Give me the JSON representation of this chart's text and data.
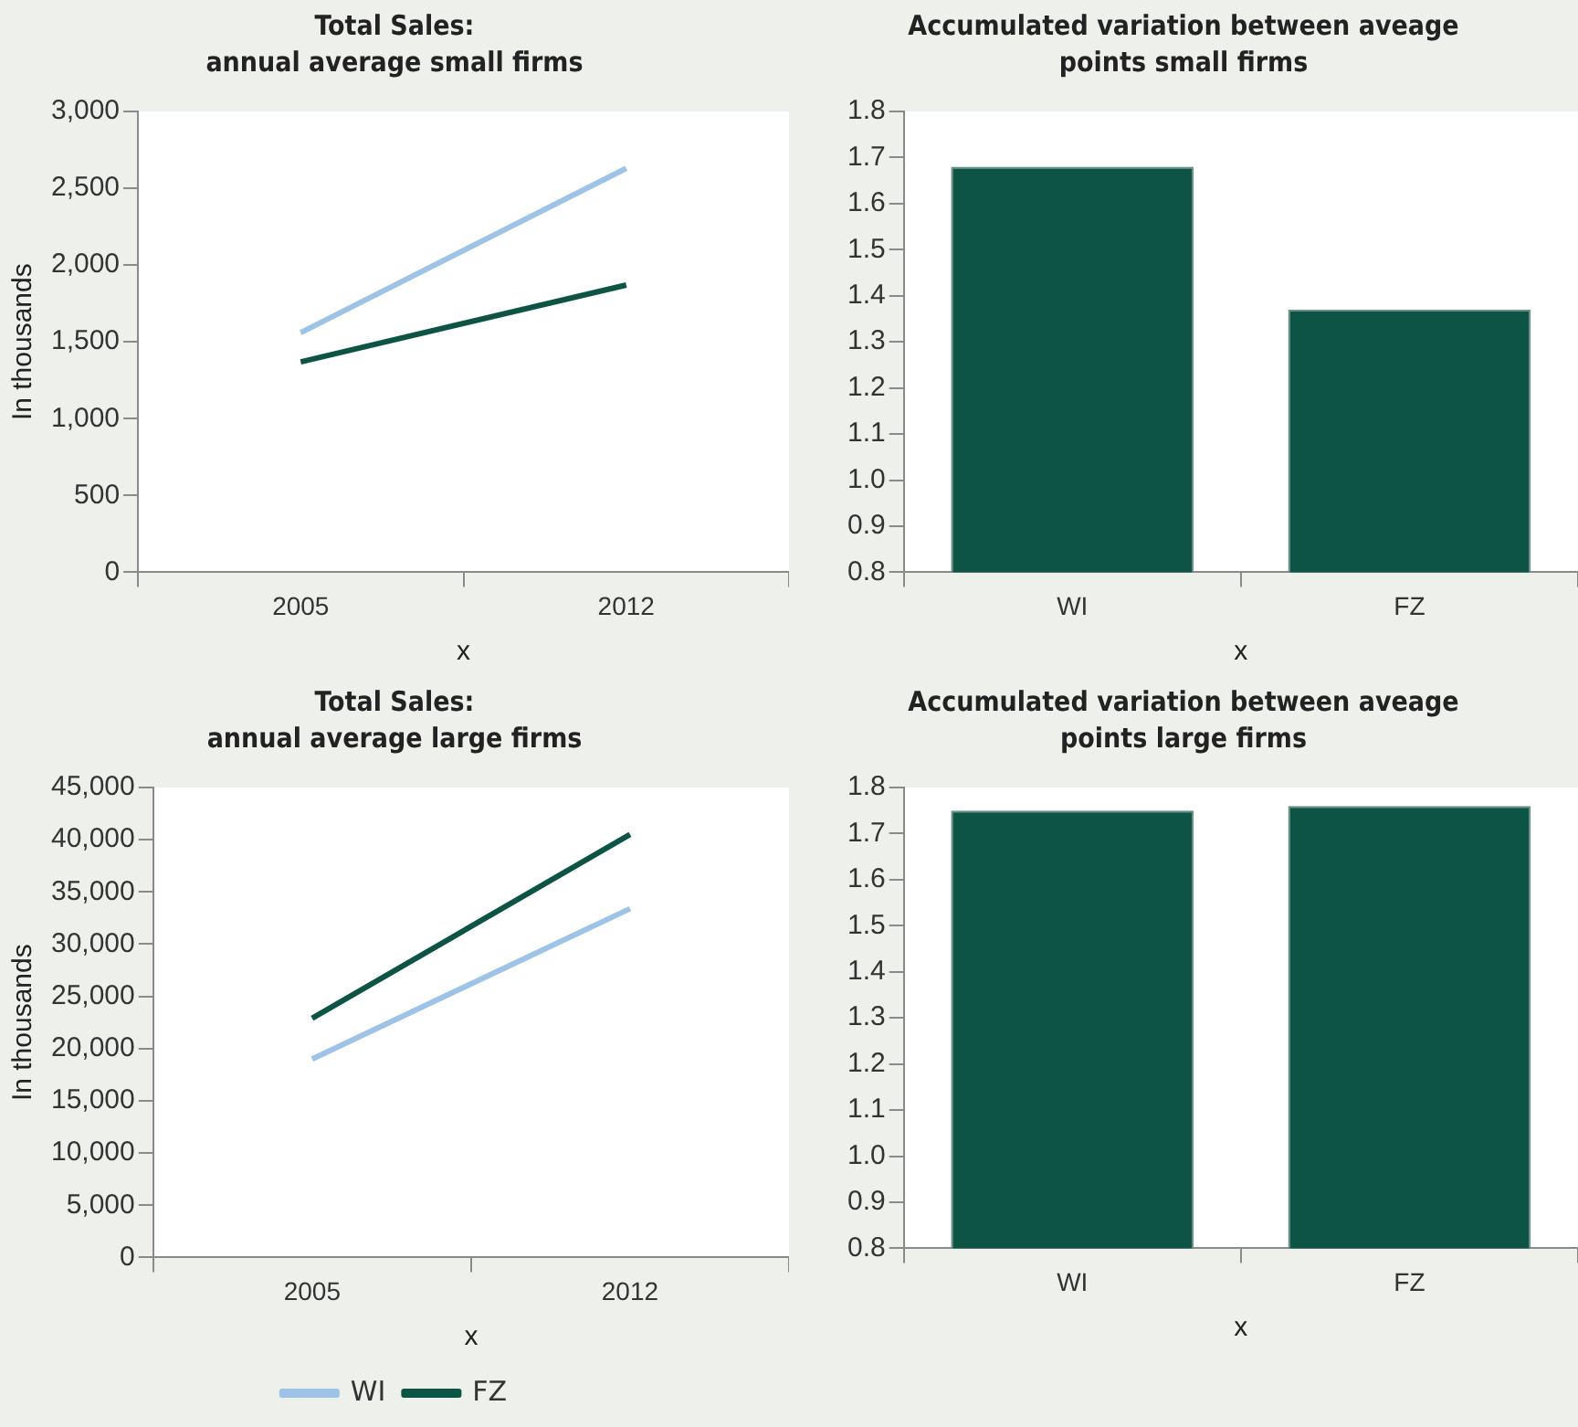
{
  "chart_data": [
    {
      "type": "line",
      "title": "Total Sales:\nannual average small firms",
      "xlabel": "x",
      "ylabel": "In thousands",
      "categories": [
        "2005",
        "2012"
      ],
      "series": [
        {
          "color": "#9dc3e6",
          "values": [
            1560,
            2630
          ]
        },
        {
          "color": "#0e5445",
          "values": [
            1370,
            1870
          ]
        }
      ],
      "ylim": [
        0,
        3000
      ],
      "yticks": [
        0,
        500,
        {
          "value": 1000,
          "label": "1,000"
        },
        {
          "value": 1500,
          "label": "1,500"
        },
        {
          "value": 2000,
          "label": "2,000"
        },
        {
          "value": 2500,
          "label": "2,500"
        },
        {
          "value": 3000,
          "label": "3,000"
        }
      ],
      "grid": false,
      "legend": false,
      "marker": "none"
    },
    {
      "type": "bar",
      "title": "Accumulated variation between aveage\npoints small firms",
      "xlabel": "x",
      "categories": [
        "WI",
        "FZ"
      ],
      "values": [
        1.68,
        1.37
      ],
      "color": "#0e5445",
      "ylim": [
        0.8,
        1.8
      ],
      "yticks": [
        0.8,
        0.9,
        {
          "value": 1.0,
          "label": "1.0"
        },
        1.1,
        1.2,
        1.3,
        1.4,
        1.5,
        1.6,
        1.7,
        1.8
      ],
      "grid": false,
      "legend": false
    },
    {
      "type": "line",
      "title": "Total Sales:\nannual average large firms",
      "xlabel": "x",
      "ylabel": "In thousands",
      "categories": [
        "2005",
        "2012"
      ],
      "series": [
        {
          "name": "WI",
          "color": "#9dc3e6",
          "values": [
            19000,
            33400
          ]
        },
        {
          "name": "FZ",
          "color": "#0e5445",
          "values": [
            22900,
            40500
          ]
        }
      ],
      "ylim": [
        0,
        45000
      ],
      "yticks": [
        0,
        {
          "value": 5000,
          "label": "5,000"
        },
        {
          "value": 10000,
          "label": "10,000"
        },
        {
          "value": 15000,
          "label": "15,000"
        },
        {
          "value": 20000,
          "label": "20,000"
        },
        {
          "value": 25000,
          "label": "25,000"
        },
        {
          "value": 30000,
          "label": "30,000"
        },
        {
          "value": 35000,
          "label": "35,000"
        },
        {
          "value": 40000,
          "label": "40,000"
        },
        {
          "value": 45000,
          "label": "45,000"
        }
      ],
      "grid": false,
      "legend": "bottom",
      "marker": "none"
    },
    {
      "type": "bar",
      "title": "Accumulated variation between aveage\npoints large firms",
      "xlabel": "x",
      "categories": [
        "WI",
        "FZ"
      ],
      "values": [
        1.75,
        1.76
      ],
      "color": "#0e5445",
      "ylim": [
        0.8,
        1.8
      ],
      "yticks": [
        0.8,
        0.9,
        {
          "value": 1.0,
          "label": "1.0"
        },
        1.1,
        1.2,
        1.3,
        1.4,
        1.5,
        1.6,
        1.7,
        1.8
      ],
      "grid": false,
      "legend": false
    }
  ]
}
